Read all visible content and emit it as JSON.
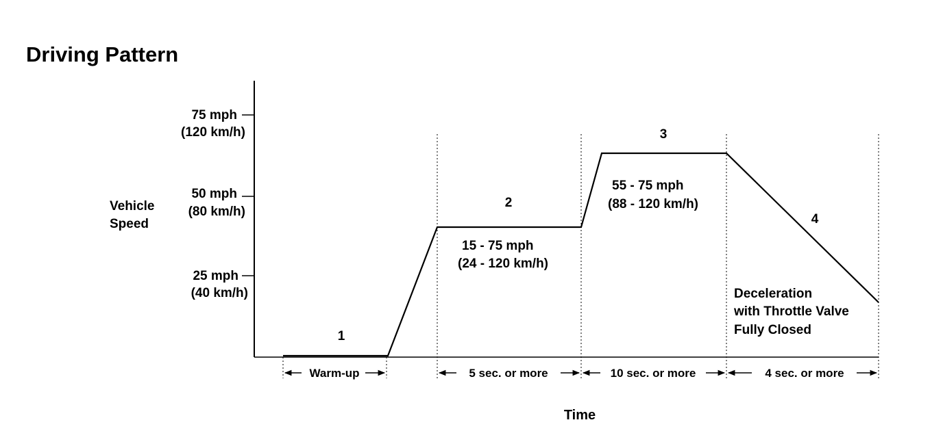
{
  "title": "Driving Pattern",
  "y_axis": {
    "label_lines": [
      "Vehicle",
      "Speed"
    ],
    "ticks": [
      {
        "line1": "75 mph",
        "line2": "(120 km/h)"
      },
      {
        "line1": "50 mph",
        "line2": "(80 km/h)"
      },
      {
        "line1": "25 mph",
        "line2": "(40 km/h)"
      }
    ]
  },
  "x_axis": {
    "label": "Time"
  },
  "phases": [
    {
      "number": "1",
      "duration": "Warm-up",
      "speed_lines": []
    },
    {
      "number": "2",
      "duration": "5 sec. or  more",
      "speed_lines": [
        "15 - 75 mph",
        "(24 - 120 km/h)"
      ]
    },
    {
      "number": "3",
      "duration": "10 sec. or  more",
      "speed_lines": [
        "55 - 75 mph",
        "(88 - 120 km/h)"
      ]
    },
    {
      "number": "4",
      "duration": "4 sec. or  more",
      "speed_lines": [
        "Deceleration",
        "with Throttle Valve",
        "Fully Closed"
      ]
    }
  ]
}
